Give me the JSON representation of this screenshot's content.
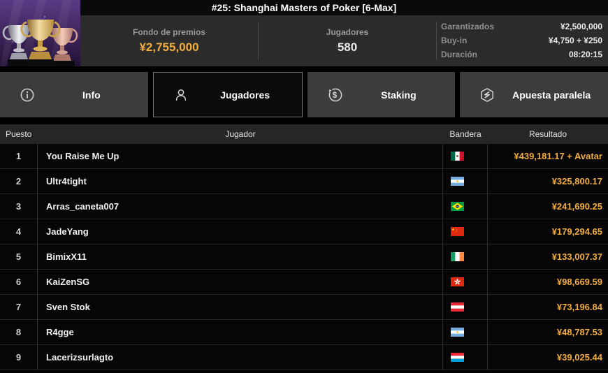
{
  "title": "#25: Shanghai Masters of Poker [6-Max]",
  "header": {
    "prize_pool": {
      "label": "Fondo de premios",
      "value": "¥2,755,000"
    },
    "players": {
      "label": "Jugadores",
      "value": "580"
    },
    "details": [
      {
        "label": "Garantizados",
        "value": "¥2,500,000"
      },
      {
        "label": "Buy-in",
        "value": "¥4,750 + ¥250"
      },
      {
        "label": "Duración",
        "value": "08:20:15"
      }
    ]
  },
  "icons": {
    "trophy_image": "three-trophies-image",
    "tab_icons": [
      "info-icon",
      "player-icon",
      "dollar-circle-icon",
      "hexagon-bolt-icon"
    ]
  },
  "tabs": [
    {
      "label": "Info",
      "icon": "info-icon",
      "active": false
    },
    {
      "label": "Jugadores",
      "icon": "player-icon",
      "active": true
    },
    {
      "label": "Staking",
      "icon": "dollar-circle-icon",
      "active": false
    },
    {
      "label": "Apuesta paralela",
      "icon": "hexagon-bolt-icon",
      "active": false
    }
  ],
  "table": {
    "columns": [
      "Puesto",
      "Jugador",
      "Bandera",
      "Resultado"
    ],
    "rows": [
      {
        "puesto": "1",
        "jugador": "You Raise Me Up",
        "bandera": "mexico",
        "resultado": "¥439,181.17 + Avatar"
      },
      {
        "puesto": "2",
        "jugador": "Ultr4tight",
        "bandera": "argentina",
        "resultado": "¥325,800.17"
      },
      {
        "puesto": "3",
        "jugador": "Arras_caneta007",
        "bandera": "brazil",
        "resultado": "¥241,690.25"
      },
      {
        "puesto": "4",
        "jugador": "JadeYang",
        "bandera": "china",
        "resultado": "¥179,294.65"
      },
      {
        "puesto": "5",
        "jugador": "BimixX11",
        "bandera": "ireland",
        "resultado": "¥133,007.37"
      },
      {
        "puesto": "6",
        "jugador": "KaiZenSG",
        "bandera": "hong-kong",
        "resultado": "¥98,669.59"
      },
      {
        "puesto": "7",
        "jugador": "Sven Stok",
        "bandera": "austria",
        "resultado": "¥73,196.84"
      },
      {
        "puesto": "8",
        "jugador": "R4gge",
        "bandera": "argentina",
        "resultado": "¥48,787.53"
      },
      {
        "puesto": "9",
        "jugador": "Lacerizsurlagto",
        "bandera": "luxembourg",
        "resultado": "¥39,025.44"
      }
    ]
  },
  "colors": {
    "accent_gold": "#f2ad3e",
    "header_bg": "#2b2b2b",
    "tab_inactive_bg": "#3c3c3c",
    "tab_active_bg": "#0c0c0c",
    "table_header_bg": "#262626",
    "row_bg": "#060606"
  }
}
